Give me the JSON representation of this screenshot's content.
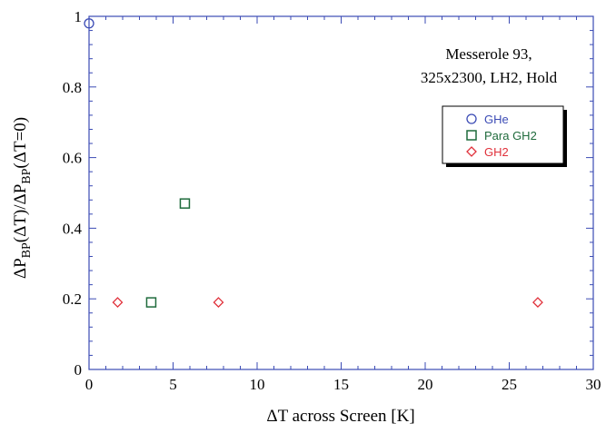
{
  "chart_data": {
    "type": "scatter",
    "title": "",
    "annotation": [
      "Messerole 93,",
      "325x2300, LH2, Hold"
    ],
    "xlabel": "ΔT across Screen [K]",
    "ylabel": {
      "parts": [
        {
          "text": "ΔP",
          "sub": false
        },
        {
          "text": "BP",
          "sub": true
        },
        {
          "text": "(ΔT)/ΔP",
          "sub": false
        },
        {
          "text": "BP",
          "sub": true
        },
        {
          "text": "(ΔT=0)",
          "sub": false
        }
      ]
    },
    "xlim": [
      0,
      30
    ],
    "ylim": [
      0,
      1
    ],
    "xticks": [
      "0",
      "5",
      "10",
      "15",
      "20",
      "25",
      "30"
    ],
    "yticks": [
      "0",
      "0.2",
      "0.4",
      "0.6",
      "0.8",
      "1"
    ],
    "xtick_values": [
      0,
      5,
      10,
      15,
      20,
      25,
      30
    ],
    "ytick_values": [
      0,
      0.2,
      0.4,
      0.6,
      0.8,
      1
    ],
    "grid": false,
    "legend_position": "top-right",
    "series": [
      {
        "name": "GHe",
        "marker": "circle",
        "color": "#3b4bb5",
        "x": [
          0.0
        ],
        "y": [
          0.98
        ]
      },
      {
        "name": "Para GH2",
        "marker": "square",
        "color": "#1f6b3c",
        "x": [
          3.7,
          5.7
        ],
        "y": [
          0.19,
          0.47
        ]
      },
      {
        "name": "GH2",
        "marker": "diamond",
        "color": "#e0303a",
        "x": [
          1.7,
          7.7,
          26.7
        ],
        "y": [
          0.19,
          0.19,
          0.19
        ]
      }
    ],
    "axis_color": "#3b4bb5"
  }
}
